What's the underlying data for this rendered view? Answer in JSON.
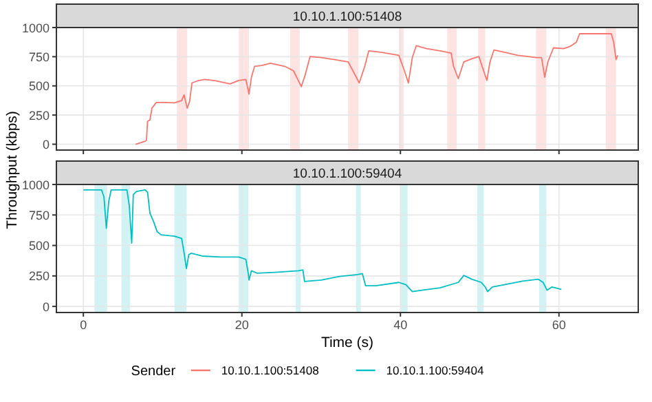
{
  "chart_data": [
    {
      "type": "line",
      "title": "10.10.1.100:51408",
      "ylabel": "Throughput (kbps)",
      "xlim": [
        -3.4,
        70
      ],
      "xticks": [
        0,
        20,
        40,
        60
      ],
      "ylim": [
        -50,
        1000
      ],
      "yticks": [
        0,
        250,
        500,
        750,
        1000
      ],
      "grid": true,
      "tick_labels": "y",
      "bands": [
        {
          "axis": "x",
          "from": 11.8,
          "to": 13.1,
          "color": "#fde3e1"
        },
        {
          "axis": "x",
          "from": 19.6,
          "to": 20.9,
          "color": "#fde3e1"
        },
        {
          "axis": "x",
          "from": 26.1,
          "to": 27.3,
          "color": "#fde3e1"
        },
        {
          "axis": "x",
          "from": 33.4,
          "to": 34.7,
          "color": "#fde3e1"
        },
        {
          "axis": "x",
          "from": 39.8,
          "to": 40.4,
          "color": "#fde3e1"
        },
        {
          "axis": "x",
          "from": 45.9,
          "to": 47.1,
          "color": "#fde3e1"
        },
        {
          "axis": "x",
          "from": 49.8,
          "to": 50.7,
          "color": "#fde3e1"
        },
        {
          "axis": "x",
          "from": 57.1,
          "to": 58.4,
          "color": "#fde3e1"
        },
        {
          "axis": "x",
          "from": 65.9,
          "to": 67.2,
          "color": "#fde3e1"
        }
      ],
      "series": [
        {
          "name": "10.10.1.100:51408",
          "color": "#f8766d",
          "x": [
            6.6,
            7.8,
            7.96,
            8.1,
            8.4,
            8.65,
            9.2,
            10.4,
            11.5,
            12.4,
            12.7,
            13.1,
            13.4,
            13.7,
            14.4,
            15.3,
            16.7,
            18.5,
            19.6,
            20.5,
            20.9,
            21.2,
            21.6,
            22.5,
            23.6,
            25.4,
            26.5,
            27.5,
            27.97,
            28.6,
            30.0,
            31.7,
            33.4,
            34.0,
            34.8,
            35.5,
            36.0,
            37.5,
            39.8,
            40.5,
            41.0,
            41.5,
            42.0,
            43.3,
            45.0,
            46.4,
            46.7,
            47.3,
            48.0,
            49.0,
            49.9,
            50.3,
            50.9,
            51.3,
            51.8,
            53.1,
            54.8,
            57.1,
            57.8,
            58.2,
            58.6,
            59.3,
            60.6,
            61.4,
            62.2,
            62.6,
            64.0,
            66.6,
            66.9,
            67.2,
            67.4
          ],
          "values": [
            0,
            26,
            34,
            196,
            208,
            309,
            358,
            358,
            355,
            374,
            423,
            309,
            366,
            525,
            543,
            555,
            543,
            517,
            547,
            555,
            430,
            574,
            668,
            675,
            694,
            668,
            630,
            494,
            592,
            751,
            743,
            725,
            706,
            630,
            525,
            668,
            800,
            789,
            762,
            630,
            525,
            743,
            845,
            819,
            800,
            781,
            668,
            562,
            706,
            732,
            751,
            668,
            547,
            706,
            808,
            789,
            762,
            743,
            743,
            574,
            706,
            826,
            819,
            838,
            875,
            947,
            947,
            947,
            875,
            725,
            762
          ]
        }
      ]
    },
    {
      "type": "line",
      "title": "10.10.1.100:59404",
      "xlabel": "Time (s)",
      "xlim": [
        -3.4,
        70
      ],
      "xticks": [
        0,
        20,
        40,
        60
      ],
      "ylim": [
        -50,
        1000
      ],
      "yticks": [
        0,
        250,
        500,
        750,
        1000
      ],
      "grid": true,
      "legend": "bottom",
      "legend_title": "Sender",
      "bands": [
        {
          "axis": "x",
          "from": 1.4,
          "to": 3.0,
          "color": "#d3f2f4"
        },
        {
          "axis": "x",
          "from": 4.8,
          "to": 5.9,
          "color": "#d3f2f4"
        },
        {
          "axis": "x",
          "from": 11.5,
          "to": 13.0,
          "color": "#d3f2f4"
        },
        {
          "axis": "x",
          "from": 19.6,
          "to": 20.8,
          "color": "#d3f2f4"
        },
        {
          "axis": "x",
          "from": 26.8,
          "to": 27.4,
          "color": "#d3f2f4"
        },
        {
          "axis": "x",
          "from": 34.4,
          "to": 35.0,
          "color": "#d3f2f4"
        },
        {
          "axis": "x",
          "from": 40.0,
          "to": 40.9,
          "color": "#d3f2f4"
        },
        {
          "axis": "x",
          "from": 49.7,
          "to": 50.5,
          "color": "#d3f2f4"
        },
        {
          "axis": "x",
          "from": 57.5,
          "to": 58.4,
          "color": "#d3f2f4"
        }
      ],
      "series": [
        {
          "name": "10.10.1.100:59404",
          "color": "#00bfc4",
          "x": [
            0,
            2.3,
            2.6,
            2.9,
            3.2,
            3.5,
            5.5,
            5.8,
            6.1,
            6.3,
            6.7,
            7.8,
            8.1,
            8.4,
            8.9,
            9.3,
            9.8,
            11.5,
            12.4,
            12.7,
            13.0,
            13.3,
            13.6,
            15.0,
            17.3,
            19.6,
            20.5,
            20.8,
            20.9,
            21.2,
            21.9,
            24.2,
            27.1,
            27.7,
            27.9,
            30.0,
            32.3,
            34.6,
            35.2,
            35.6,
            36.9,
            39.8,
            40.7,
            41.5,
            42.7,
            45.0,
            47.3,
            48.0,
            49.0,
            50.2,
            50.7,
            51.0,
            51.6,
            53.1,
            55.4,
            57.4,
            58.0,
            58.5,
            59.1,
            60.3
          ],
          "values": [
            955,
            955,
            898,
            640,
            860,
            955,
            955,
            822,
            519,
            917,
            943,
            955,
            936,
            765,
            689,
            614,
            587,
            576,
            557,
            443,
            311,
            424,
            436,
            413,
            405,
            405,
            386,
            273,
            216,
            292,
            273,
            280,
            292,
            299,
            205,
            216,
            246,
            261,
            269,
            170,
            170,
            197,
            178,
            121,
            133,
            152,
            197,
            254,
            223,
            197,
            159,
            121,
            159,
            178,
            208,
            223,
            197,
            133,
            159,
            140
          ]
        }
      ]
    }
  ]
}
